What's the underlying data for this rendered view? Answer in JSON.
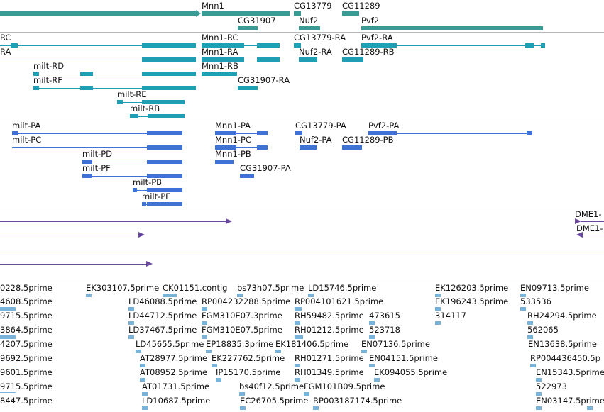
{
  "colors": {
    "gene": "#3a9a94",
    "transcript": "#1e9fb4",
    "protein": "#3f71d6",
    "alignment": "#6a4a9c",
    "est": "#7ab3d9",
    "separator": "#b8b8b8"
  },
  "tracks": {
    "genes": [
      {
        "label": "Mnn1",
        "icon": "gene-feature-icon"
      },
      {
        "label": "CG13779",
        "icon": "gene-feature-icon"
      },
      {
        "label": "CG11289",
        "icon": "gene-feature-icon"
      },
      {
        "label": "CG31907",
        "icon": "gene-feature-icon"
      },
      {
        "label": "Nuf2",
        "icon": "gene-feature-icon"
      },
      {
        "label": "Pvf2",
        "icon": "gene-feature-icon"
      }
    ],
    "transcripts": [
      {
        "label": "RC"
      },
      {
        "label": "Mnn1-RC"
      },
      {
        "label": "CG13779-RA"
      },
      {
        "label": "Pvf2-RA"
      },
      {
        "label": "RA"
      },
      {
        "label": "Mnn1-RA"
      },
      {
        "label": "Nuf2-RA"
      },
      {
        "label": "CG11289-RB"
      },
      {
        "label": "milt-RD"
      },
      {
        "label": "Mnn1-RB"
      },
      {
        "label": "milt-RF"
      },
      {
        "label": "CG31907-RA"
      },
      {
        "label": "milt-RE"
      },
      {
        "label": "milt-RB"
      }
    ],
    "proteins": [
      {
        "label": "milt-PA"
      },
      {
        "label": "Mnn1-PA"
      },
      {
        "label": "CG13779-PA"
      },
      {
        "label": "Pvf2-PA"
      },
      {
        "label": "milt-PC"
      },
      {
        "label": "Mnn1-PC"
      },
      {
        "label": "Nuf2-PA"
      },
      {
        "label": "CG11289-PB"
      },
      {
        "label": "milt-PD"
      },
      {
        "label": "Mnn1-PB"
      },
      {
        "label": "milt-PF"
      },
      {
        "label": "CG31907-PA"
      },
      {
        "label": "milt-PB"
      },
      {
        "label": "milt-PE"
      }
    ],
    "alignments": [
      {
        "label": "DME1-"
      },
      {
        "label": "DME1-"
      }
    ],
    "ests": [
      "0228.5prime",
      "EK303107.5prime",
      "CK01151.contig",
      "bs73h07.5prime",
      "LD15746.5prime",
      "EK126203.5prime",
      "EN09713.5prime",
      "4608.5prime",
      "LD46088.5prime",
      "RP004232288.5prime",
      "RP004101621.5prime",
      "EK196243.5prime",
      "533536",
      "9715.5prime",
      "LD44712.5prime",
      "FGM310E07.3prime",
      "RH59482.5prime",
      "473615",
      "314117",
      "RH24294.5prime",
      "3864.5prime",
      "LD37467.5prime",
      "FGM310E07.5prime",
      "RH01212.5prime",
      "523718",
      "562065",
      "4207.5prime",
      "LD45655.5prime",
      "EP18835.3prime",
      "EK181406.5prime",
      "EN07136.5prime",
      "EN13638.5prime",
      "9692.5prime",
      "AT28977.5prime",
      "EK227762.5prime",
      "RH01271.5prime",
      "EN04151.5prime",
      "RP004436450.5p",
      "9601.5prime",
      "AT08952.5prime",
      "IP15170.5prime",
      "RH01349.5prime",
      "EK094055.5prime",
      "EN15343.5prime",
      "9715.5prime",
      "AT01731.5prime",
      "bs40f12.5prime",
      "FGM101B09.5prime",
      "522973",
      "8447.5prime",
      "LD10687.5prime",
      "EC26705.5prime",
      "RP003187174.5prime",
      "EN03147.5prime"
    ]
  }
}
